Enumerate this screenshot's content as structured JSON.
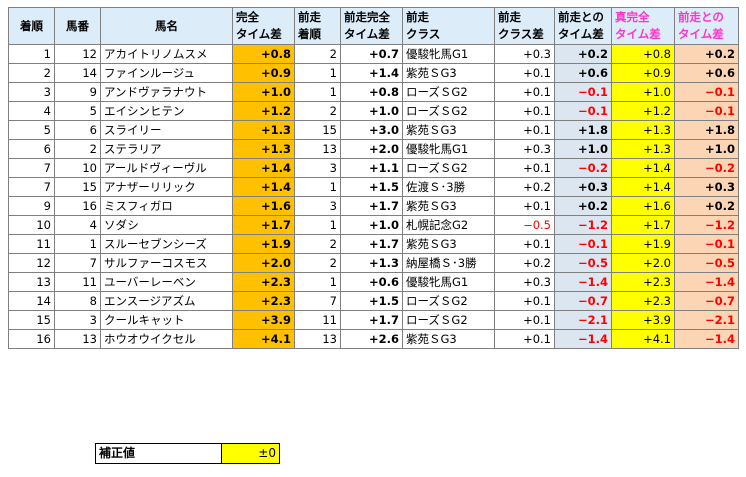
{
  "headers": {
    "rank": "着順",
    "num": "馬番",
    "name": "馬名",
    "td1": "完全",
    "td2": "タイム差",
    "prev_rank1": "前走",
    "prev_rank2": "着順",
    "prev_td1": "前走完全",
    "prev_td2": "タイム差",
    "cls1": "前走",
    "cls2": "クラス",
    "cls_diff1": "前走",
    "cls_diff2": "クラス差",
    "diff1": "前走との",
    "diff2": "タイム差",
    "true_td1": "真完全",
    "true_td2": "タイム差",
    "true_diff1": "前走との",
    "true_diff2": "タイム差"
  },
  "rows": [
    {
      "rank": "1",
      "num": "12",
      "name": "アカイトリノムスメ",
      "td": "+0.8",
      "prank": "2",
      "ptd": "+0.7",
      "cls": "優駿牝馬G1",
      "cdiff": "+0.3",
      "diff": "+0.2",
      "ttd": "+0.8",
      "tdiff": "+0.2",
      "cneg": false,
      "dneg": false,
      "tneg": false
    },
    {
      "rank": "2",
      "num": "14",
      "name": "ファインルージュ",
      "td": "+0.9",
      "prank": "1",
      "ptd": "+1.4",
      "cls": "紫苑ＳG3",
      "cdiff": "+0.1",
      "diff": "+0.6",
      "ttd": "+0.9",
      "tdiff": "+0.6",
      "cneg": false,
      "dneg": false,
      "tneg": false
    },
    {
      "rank": "3",
      "num": "9",
      "name": "アンドヴァラナウト",
      "td": "+1.0",
      "prank": "1",
      "ptd": "+0.8",
      "cls": "ローズＳG2",
      "cdiff": "+0.1",
      "diff": "−0.1",
      "ttd": "+1.0",
      "tdiff": "−0.1",
      "cneg": false,
      "dneg": true,
      "tneg": true
    },
    {
      "rank": "4",
      "num": "5",
      "name": "エイシンヒテン",
      "td": "+1.2",
      "prank": "2",
      "ptd": "+1.0",
      "cls": "ローズＳG2",
      "cdiff": "+0.1",
      "diff": "−0.1",
      "ttd": "+1.2",
      "tdiff": "−0.1",
      "cneg": false,
      "dneg": true,
      "tneg": true
    },
    {
      "rank": "5",
      "num": "6",
      "name": "スライリー",
      "td": "+1.3",
      "prank": "15",
      "ptd": "+3.0",
      "cls": "紫苑ＳG3",
      "cdiff": "+0.1",
      "diff": "+1.8",
      "ttd": "+1.3",
      "tdiff": "+1.8",
      "cneg": false,
      "dneg": false,
      "tneg": false
    },
    {
      "rank": "6",
      "num": "2",
      "name": "ステラリア",
      "td": "+1.3",
      "prank": "13",
      "ptd": "+2.0",
      "cls": "優駿牝馬G1",
      "cdiff": "+0.3",
      "diff": "+1.0",
      "ttd": "+1.3",
      "tdiff": "+1.0",
      "cneg": false,
      "dneg": false,
      "tneg": false
    },
    {
      "rank": "7",
      "num": "10",
      "name": "アールドヴィーヴル",
      "td": "+1.4",
      "prank": "3",
      "ptd": "+1.1",
      "cls": "ローズＳG2",
      "cdiff": "+0.1",
      "diff": "−0.2",
      "ttd": "+1.4",
      "tdiff": "−0.2",
      "cneg": false,
      "dneg": true,
      "tneg": true
    },
    {
      "rank": "7",
      "num": "15",
      "name": "アナザーリリック",
      "td": "+1.4",
      "prank": "1",
      "ptd": "+1.5",
      "cls": "佐渡Ｓ･3勝",
      "cdiff": "+0.2",
      "diff": "+0.3",
      "ttd": "+1.4",
      "tdiff": "+0.3",
      "cneg": false,
      "dneg": false,
      "tneg": false
    },
    {
      "rank": "9",
      "num": "16",
      "name": "ミスフィガロ",
      "td": "+1.6",
      "prank": "3",
      "ptd": "+1.7",
      "cls": "紫苑ＳG3",
      "cdiff": "+0.1",
      "diff": "+0.2",
      "ttd": "+1.6",
      "tdiff": "+0.2",
      "cneg": false,
      "dneg": false,
      "tneg": false
    },
    {
      "rank": "10",
      "num": "4",
      "name": "ソダシ",
      "td": "+1.7",
      "prank": "1",
      "ptd": "+1.0",
      "cls": "札幌記念G2",
      "cdiff": "−0.5",
      "diff": "−1.2",
      "ttd": "+1.7",
      "tdiff": "−1.2",
      "cneg": true,
      "dneg": true,
      "tneg": true
    },
    {
      "rank": "11",
      "num": "1",
      "name": "スルーセブンシーズ",
      "td": "+1.9",
      "prank": "2",
      "ptd": "+1.7",
      "cls": "紫苑ＳG3",
      "cdiff": "+0.1",
      "diff": "−0.1",
      "ttd": "+1.9",
      "tdiff": "−0.1",
      "cneg": false,
      "dneg": true,
      "tneg": true
    },
    {
      "rank": "12",
      "num": "7",
      "name": "サルファーコスモス",
      "td": "+2.0",
      "prank": "2",
      "ptd": "+1.3",
      "cls": "納屋橋Ｓ･3勝",
      "cdiff": "+0.2",
      "diff": "−0.5",
      "ttd": "+2.0",
      "tdiff": "−0.5",
      "cneg": false,
      "dneg": true,
      "tneg": true
    },
    {
      "rank": "13",
      "num": "11",
      "name": "ユーバーレーベン",
      "td": "+2.3",
      "prank": "1",
      "ptd": "+0.6",
      "cls": "優駿牝馬G1",
      "cdiff": "+0.3",
      "diff": "−1.4",
      "ttd": "+2.3",
      "tdiff": "−1.4",
      "cneg": false,
      "dneg": true,
      "tneg": true
    },
    {
      "rank": "14",
      "num": "8",
      "name": "エンスージアズム",
      "td": "+2.3",
      "prank": "7",
      "ptd": "+1.5",
      "cls": "ローズＳG2",
      "cdiff": "+0.1",
      "diff": "−0.7",
      "ttd": "+2.3",
      "tdiff": "−0.7",
      "cneg": false,
      "dneg": true,
      "tneg": true
    },
    {
      "rank": "15",
      "num": "3",
      "name": "クールキャット",
      "td": "+3.9",
      "prank": "11",
      "ptd": "+1.7",
      "cls": "ローズＳG2",
      "cdiff": "+0.1",
      "diff": "−2.1",
      "ttd": "+3.9",
      "tdiff": "−2.1",
      "cneg": false,
      "dneg": true,
      "tneg": true
    },
    {
      "rank": "16",
      "num": "13",
      "name": "ホウオウイクセル",
      "td": "+4.1",
      "prank": "13",
      "ptd": "+2.6",
      "cls": "紫苑ＳG3",
      "cdiff": "+0.1",
      "diff": "−1.4",
      "ttd": "+4.1",
      "tdiff": "−1.4",
      "cneg": false,
      "dneg": true,
      "tneg": true
    }
  ],
  "correction": {
    "label": "補正値",
    "value": "±0"
  },
  "colors": {
    "td_fill": "#ffc000",
    "diff_fill": "#dce6f1",
    "true_td_fill": "#ffff00",
    "true_diff_fill": "#fcd5b4",
    "negative": "#ff0000",
    "true_header_text": "#ff33cc"
  }
}
